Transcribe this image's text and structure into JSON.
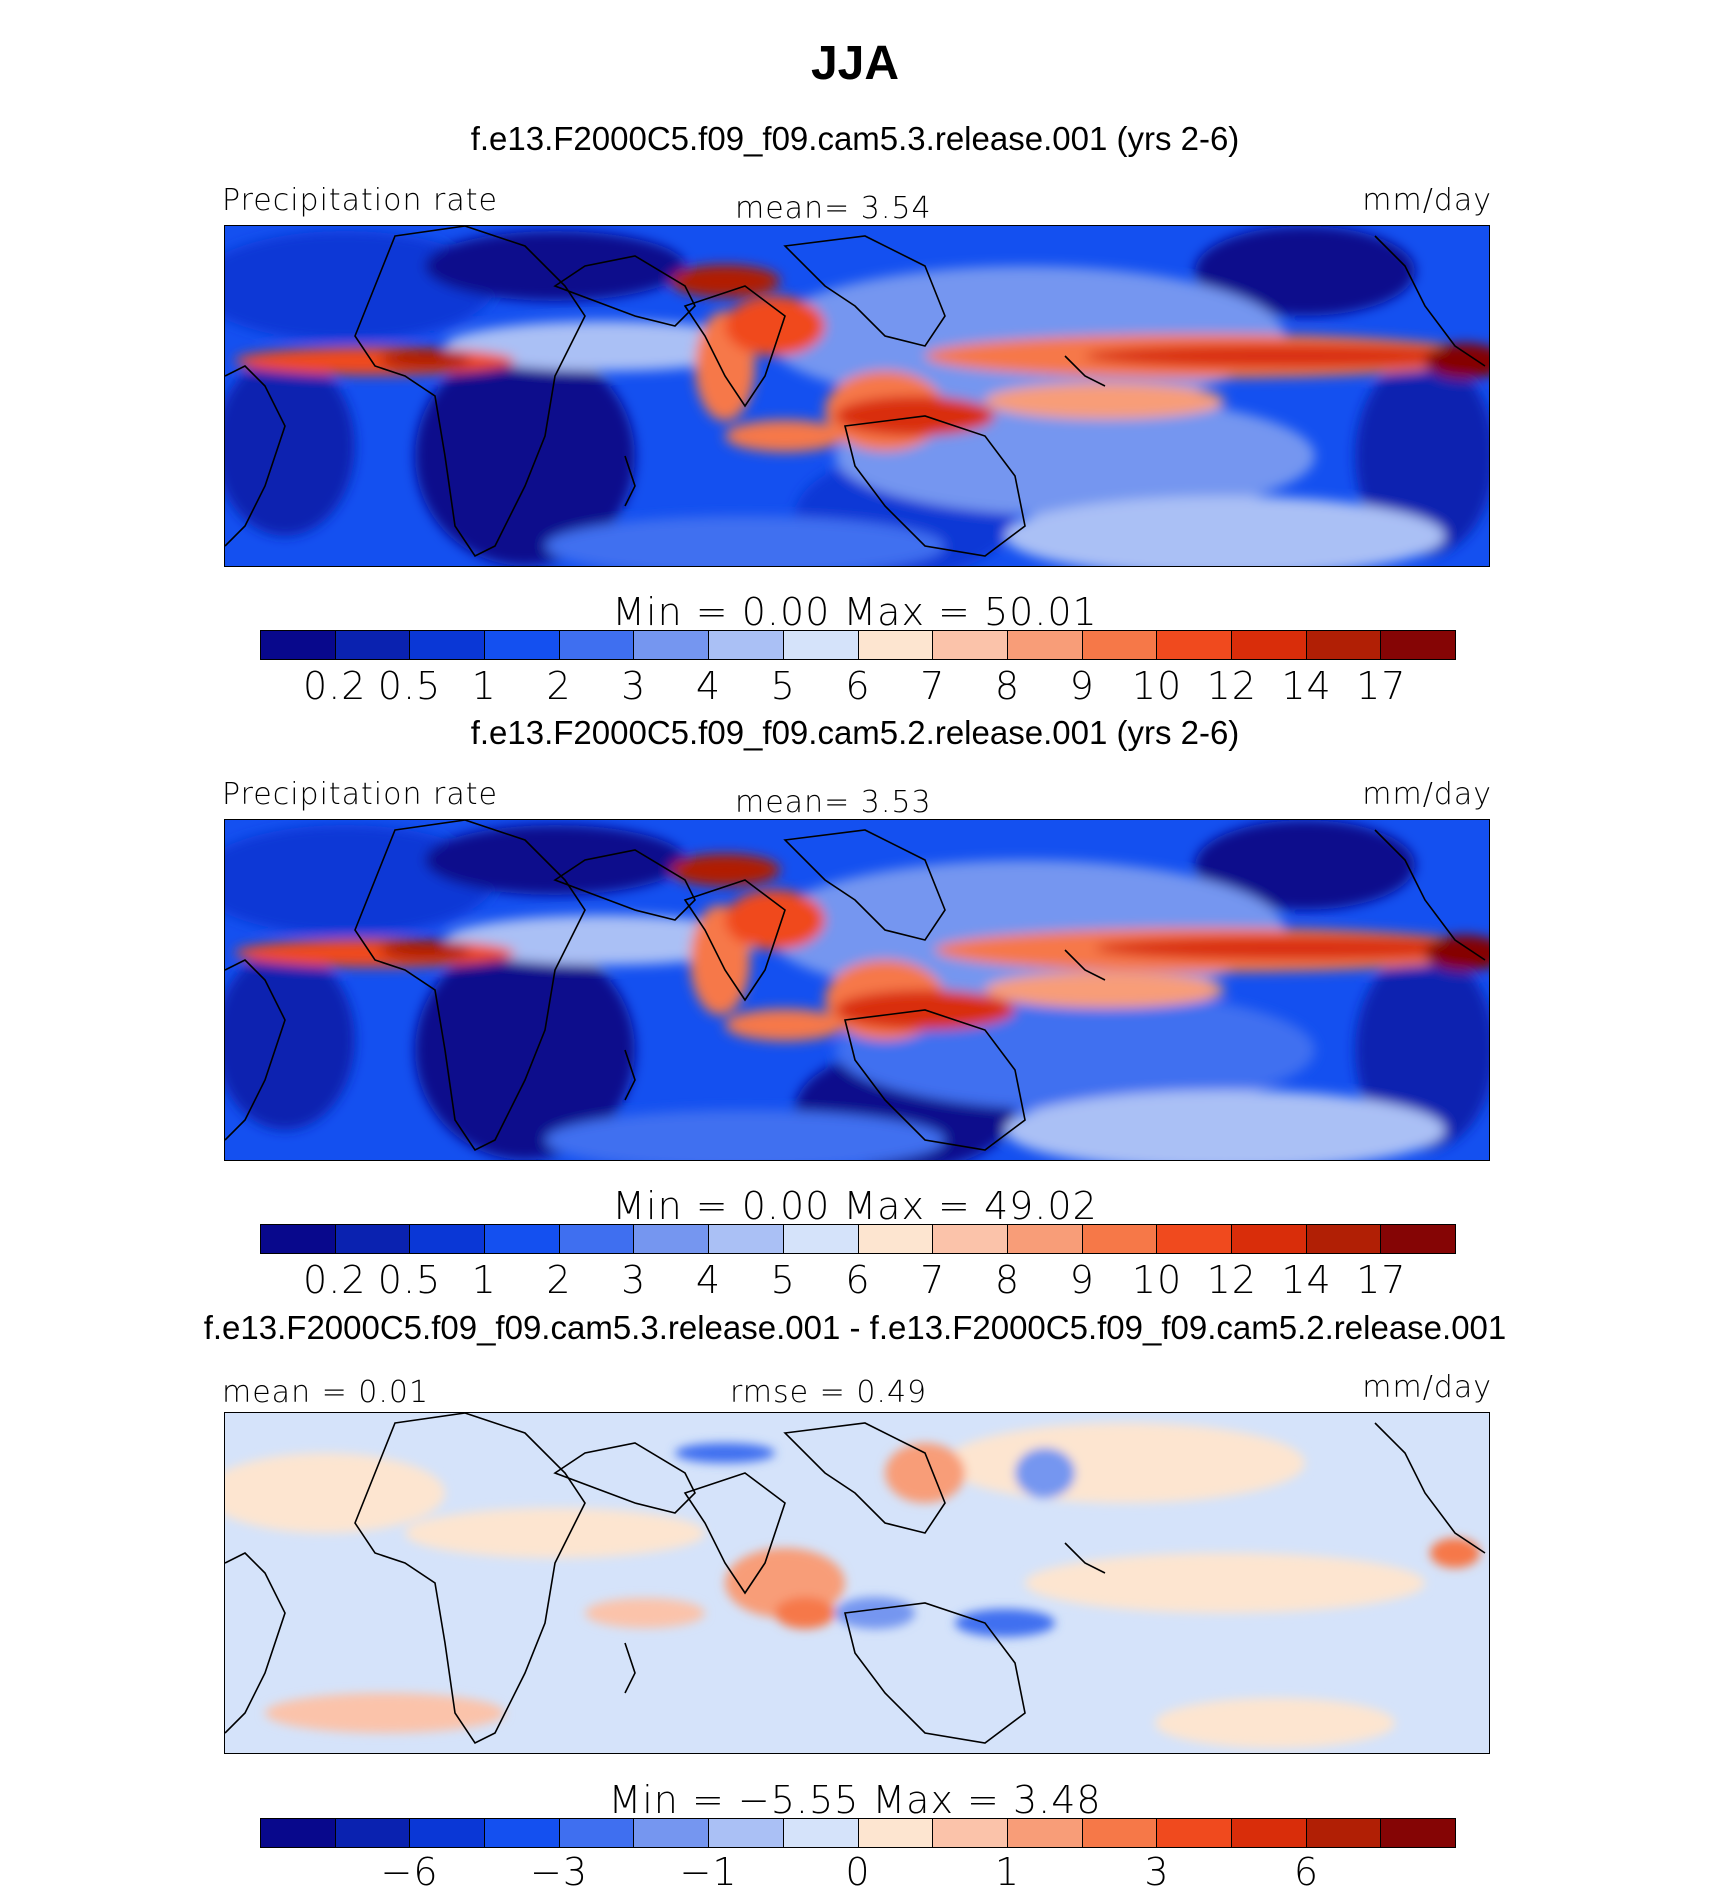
{
  "title": "JJA",
  "colors": {
    "abs": [
      "#08088c",
      "#0a22b0",
      "#0a37d6",
      "#1450f0",
      "#3f6ff0",
      "#7596f0",
      "#aac0f5",
      "#d5e3fa",
      "#fde5d0",
      "#fbc3aa",
      "#f89d78",
      "#f67848",
      "#f04a1e",
      "#d92d0a",
      "#b11f05",
      "#850505"
    ],
    "diff": [
      "#08088c",
      "#0a22b0",
      "#0a37d6",
      "#1450f0",
      "#3f6ff0",
      "#7596f0",
      "#aac0f5",
      "#d5e3fa",
      "#fde5d0",
      "#fbc3aa",
      "#f89d78",
      "#f67848",
      "#f04a1e",
      "#d92d0a",
      "#b11f05",
      "#850505"
    ]
  },
  "panels": [
    {
      "subtitle": "f.e13.F2000C5.f09_f09.cam5.3.release.001 (yrs 2-6)",
      "left_label": "Precipitation  rate",
      "center_label": "mean=    3.54",
      "right_label": "mm/day",
      "minmax": "Min  =     0.00  Max  =    50.01",
      "ticks": [
        "0.2",
        "0.5",
        "1",
        "2",
        "3",
        "4",
        "5",
        "6",
        "7",
        "8",
        "9",
        "10",
        "12",
        "14",
        "17"
      ]
    },
    {
      "subtitle": "f.e13.F2000C5.f09_f09.cam5.2.release.001 (yrs 2-6)",
      "left_label": "Precipitation  rate",
      "center_label": "mean=    3.53",
      "right_label": "mm/day",
      "minmax": "Min  =     0.00  Max  =    49.02",
      "ticks": [
        "0.2",
        "0.5",
        "1",
        "2",
        "3",
        "4",
        "5",
        "6",
        "7",
        "8",
        "9",
        "10",
        "12",
        "14",
        "17"
      ]
    },
    {
      "subtitle": "f.e13.F2000C5.f09_f09.cam5.3.release.001 - f.e13.F2000C5.f09_f09.cam5.2.release.001",
      "left_label": "mean  =    0.01",
      "center_label": "rmse  =    0.49",
      "right_label": "mm/day",
      "minmax": "Min  =   −5.55  Max  =     3.48",
      "ticks": [
        "−6",
        "−3",
        "−1",
        "0",
        "1",
        "3",
        "6"
      ]
    }
  ]
}
